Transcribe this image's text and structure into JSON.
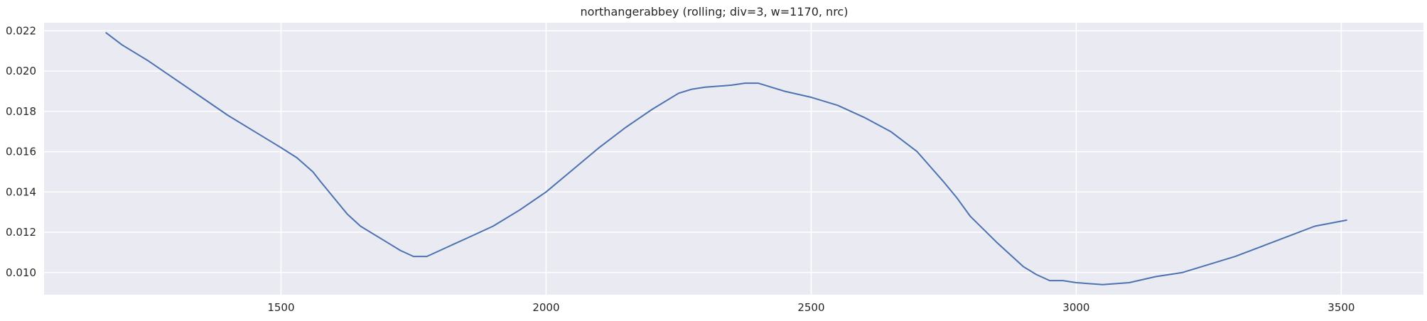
{
  "chart_data": {
    "type": "line",
    "title": "northangerabbey  (rolling; div=3, w=1170, nrc)",
    "xlabel": "",
    "ylabel": "",
    "xlim": [
      1053,
      3655
    ],
    "ylim": [
      0.0089,
      0.0224
    ],
    "x_ticks": [
      1500,
      2000,
      2500,
      3000,
      3500
    ],
    "y_ticks": [
      0.01,
      0.012,
      0.014,
      0.016,
      0.018,
      0.02,
      0.022
    ],
    "x_tick_labels": [
      "1500",
      "2000",
      "2500",
      "3000",
      "3500"
    ],
    "y_tick_labels": [
      "0.010",
      "0.012",
      "0.014",
      "0.016",
      "0.018",
      "0.020",
      "0.022"
    ],
    "grid": true,
    "colors": {
      "background": "#eaeaf2",
      "grid": "#ffffff",
      "line": "#4c72b0"
    },
    "series": [
      {
        "x": [
          1170,
          1200,
          1250,
          1300,
          1350,
          1400,
          1450,
          1500,
          1530,
          1560,
          1575,
          1600,
          1625,
          1650,
          1700,
          1725,
          1750,
          1775,
          1800,
          1850,
          1900,
          1950,
          2000,
          2050,
          2100,
          2150,
          2200,
          2250,
          2275,
          2300,
          2350,
          2375,
          2400,
          2425,
          2450,
          2500,
          2550,
          2600,
          2650,
          2700,
          2750,
          2775,
          2800,
          2850,
          2900,
          2925,
          2950,
          2975,
          3000,
          3050,
          3100,
          3150,
          3200,
          3250,
          3300,
          3350,
          3400,
          3450,
          3510
        ],
        "values": [
          0.0219,
          0.0213,
          0.0205,
          0.0196,
          0.0187,
          0.0178,
          0.017,
          0.0162,
          0.0157,
          0.015,
          0.0145,
          0.0137,
          0.0129,
          0.0123,
          0.0115,
          0.0111,
          0.0108,
          0.0108,
          0.0111,
          0.0117,
          0.0123,
          0.0131,
          0.014,
          0.0151,
          0.0162,
          0.0172,
          0.0181,
          0.0189,
          0.0191,
          0.0192,
          0.0193,
          0.0194,
          0.0194,
          0.0192,
          0.019,
          0.0187,
          0.0183,
          0.0177,
          0.017,
          0.016,
          0.0145,
          0.0137,
          0.0128,
          0.0115,
          0.0103,
          0.0099,
          0.0096,
          0.0096,
          0.0095,
          0.0094,
          0.0095,
          0.0098,
          0.01,
          0.0104,
          0.0108,
          0.0113,
          0.0118,
          0.0123,
          0.0126
        ]
      }
    ]
  }
}
